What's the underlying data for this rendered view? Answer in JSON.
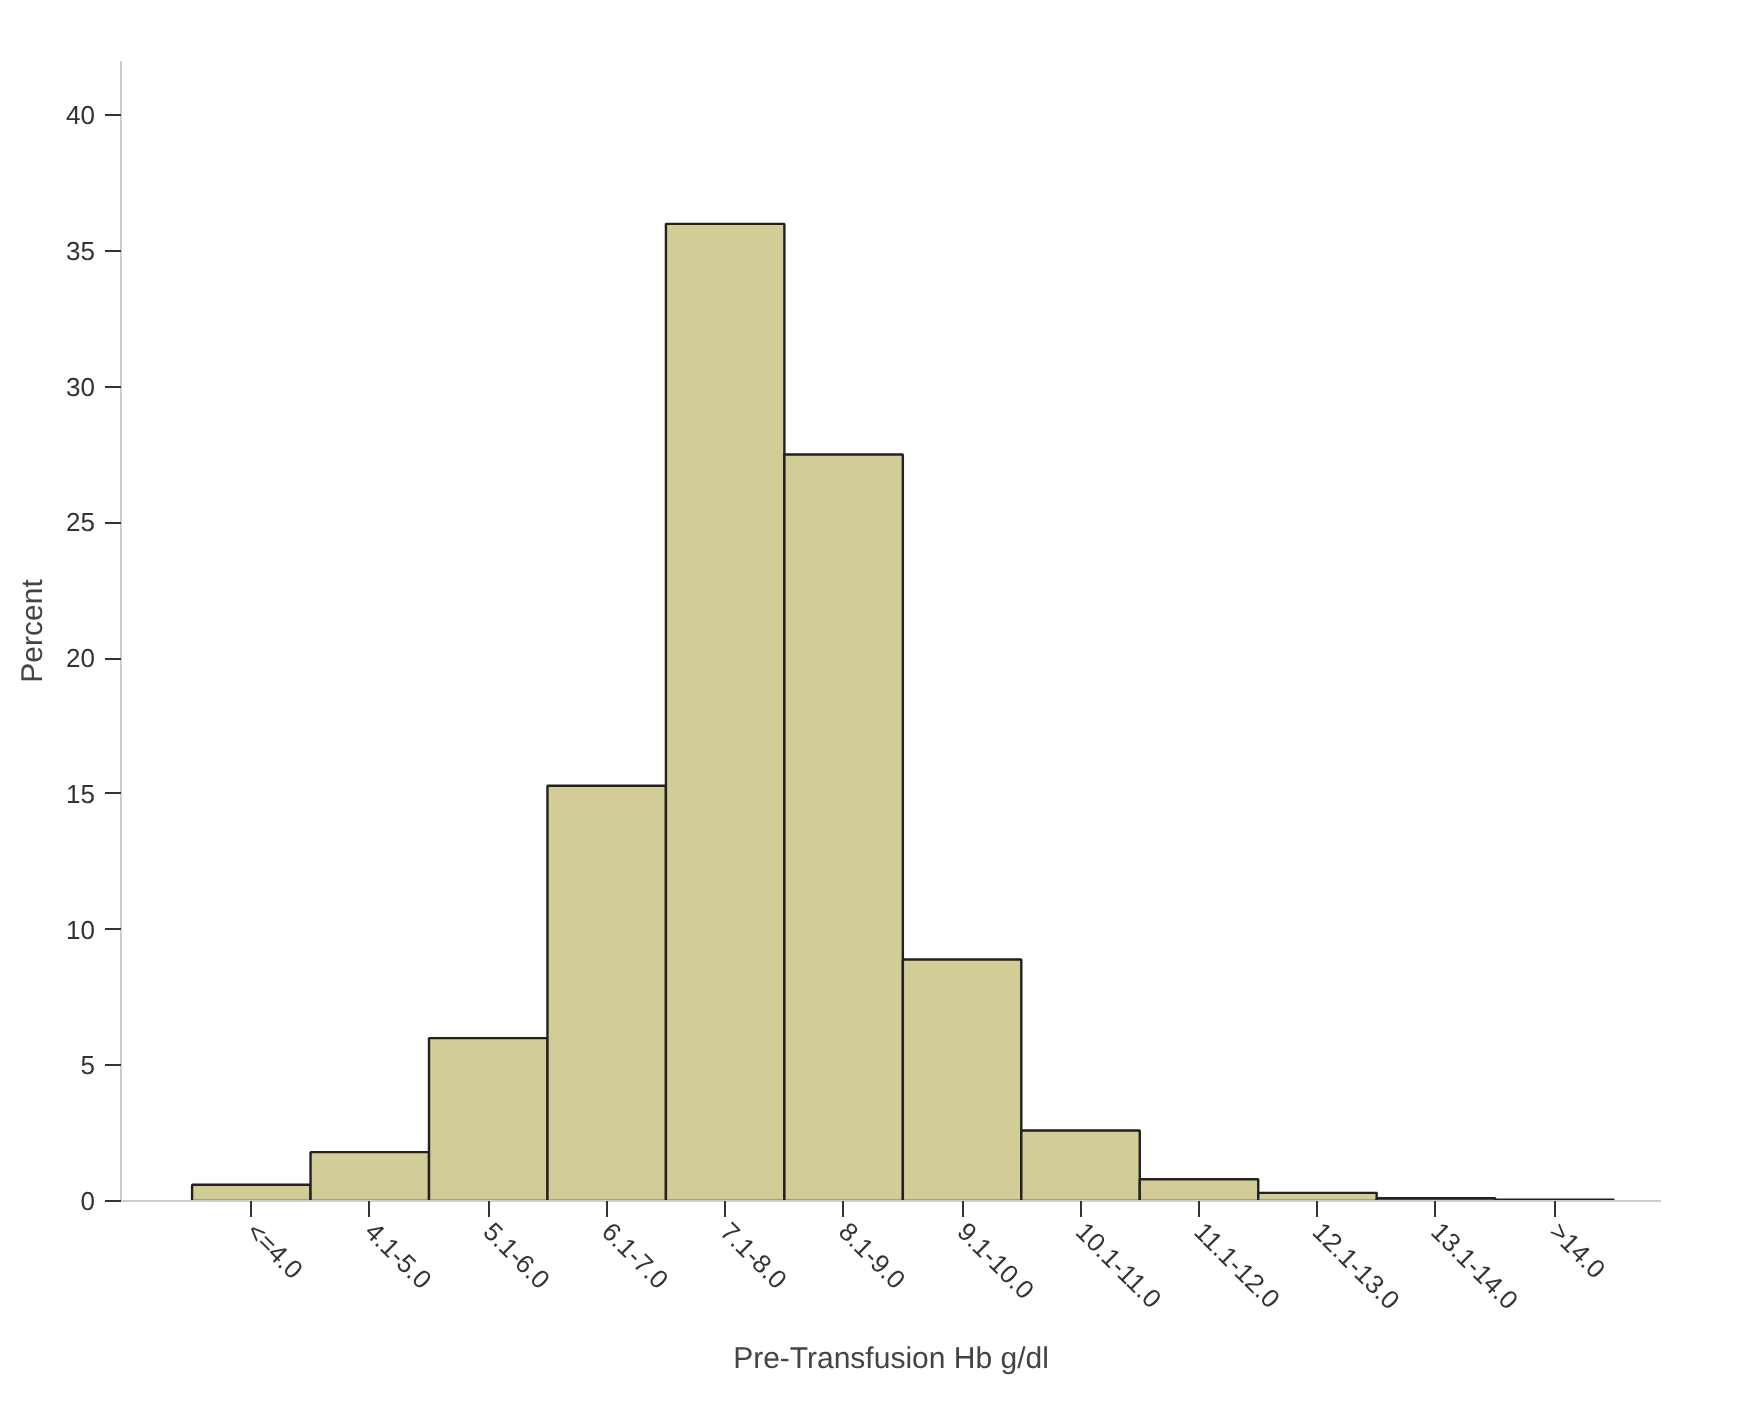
{
  "chart_data": {
    "type": "bar",
    "xlabel": "Pre-Transfusion Hb g/dl",
    "ylabel": "Percent",
    "categories": [
      "<=4.0",
      "4.1-5.0",
      "5.1-6.0",
      "6.1-7.0",
      "7.1-8.0",
      "8.1-9.0",
      "9.1-10.0",
      "10.1-11.0",
      "11.1-12.0",
      "12.1-13.0",
      "13.1-14.0",
      ">14.0"
    ],
    "values": [
      0.6,
      1.8,
      6.0,
      15.3,
      36.0,
      27.5,
      8.9,
      2.6,
      0.8,
      0.3,
      0.1,
      0.05
    ],
    "color": "#d2cd96",
    "ylim": [
      0,
      42
    ],
    "yticks": [
      0,
      5,
      10,
      15,
      20,
      25,
      30,
      35,
      40
    ],
    "grid": false
  }
}
